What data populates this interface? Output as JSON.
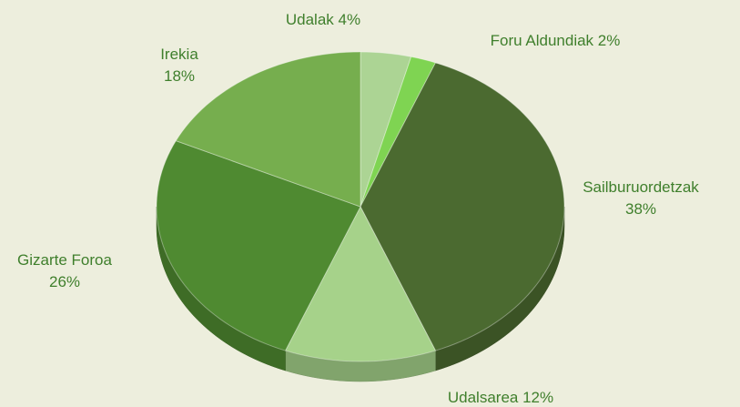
{
  "chart_data": {
    "type": "pie",
    "categories": [
      "Udalak",
      "Foru Aldundiak",
      "Sailburuordetzak",
      "Udalsarea",
      "Gizarte Foroa",
      "Irekia"
    ],
    "values": [
      4,
      2,
      38,
      12,
      26,
      18
    ],
    "value_labels": [
      "4%",
      "2%",
      "38%",
      "12%",
      "26%",
      "18%"
    ],
    "colors": [
      "#acd494",
      "#7fd452",
      "#4b6a30",
      "#a6d28a",
      "#4f8a31",
      "#76ae4e"
    ]
  }
}
